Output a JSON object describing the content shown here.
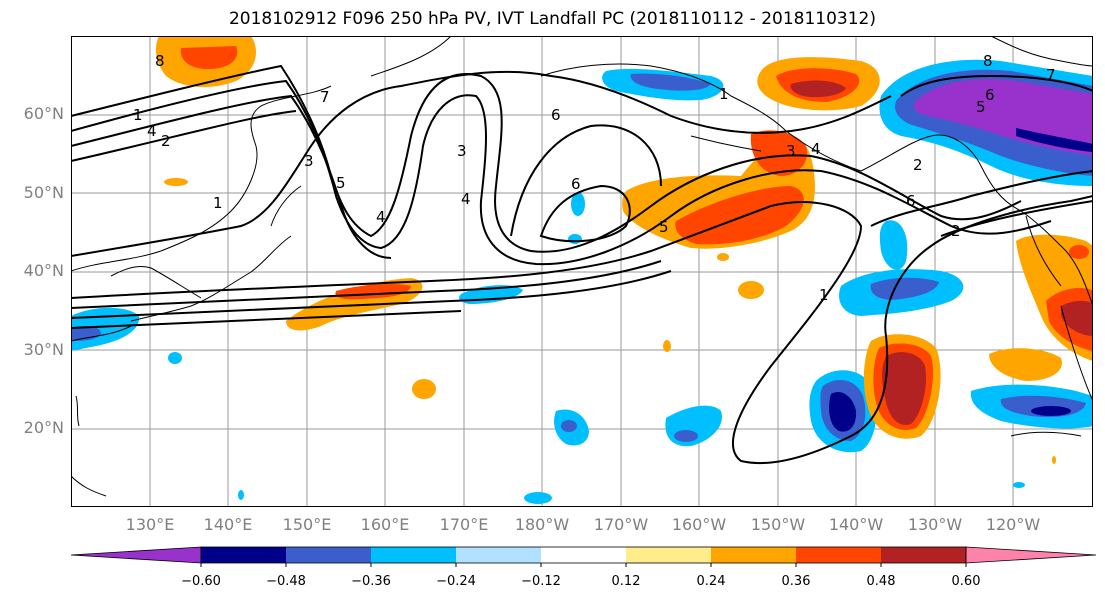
{
  "title": "2018102912 F096 250 hPa PV, IVT Landfall PC (2018110112 - 2018110312)",
  "lat_labels": [
    "60°N",
    "50°N",
    "40°N",
    "30°N",
    "20°N"
  ],
  "lon_labels": [
    "130°E",
    "140°E",
    "150°E",
    "160°E",
    "170°E",
    "180°W",
    "170°W",
    "160°W",
    "150°W",
    "140°W",
    "130°W",
    "120°W"
  ],
  "colorbar": {
    "ticks": [
      "−0.60",
      "−0.48",
      "−0.36",
      "−0.24",
      "−0.12",
      "0.12",
      "0.24",
      "0.36",
      "0.48",
      "0.60"
    ],
    "colors": [
      "#9932cc",
      "#00008b",
      "#3a5fcd",
      "#00bfff",
      "#b0e2ff",
      "#ffffff",
      "#ffec8b",
      "#ffa500",
      "#ff4500",
      "#b22222",
      "#ff82ab"
    ]
  },
  "contour_labels": [
    "1",
    "2",
    "4",
    "8",
    "7",
    "3",
    "5",
    "4",
    "1",
    "6",
    "6",
    "5",
    "4",
    "3",
    "1",
    "2",
    "6",
    "5",
    "1",
    "2",
    "6",
    "7",
    "8",
    "4",
    "3"
  ]
}
